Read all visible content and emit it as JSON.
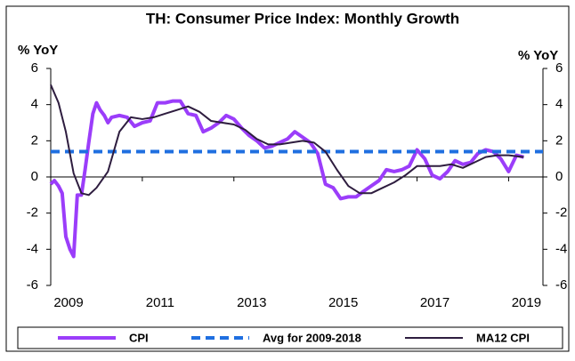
{
  "chart_data": {
    "type": "line",
    "title": "TH: Consumer Price Index: Monthly Growth",
    "ylabel": "% YoY",
    "y2label": "% YoY",
    "xlim": [
      2009,
      2019.75
    ],
    "xticks": [
      2009,
      2011,
      2013,
      2015,
      2017,
      2019
    ],
    "ylim": [
      -6,
      6
    ],
    "yticks": [
      -6,
      -4,
      -2,
      0,
      2,
      4,
      6
    ],
    "y2lim": [
      -6,
      6
    ],
    "y2ticks": [
      -6,
      -4,
      -2,
      0,
      2,
      4,
      6
    ],
    "grid": false,
    "series": [
      {
        "name": "CPI",
        "color": "#9b3dfa",
        "width": 4,
        "dash": false,
        "x": [
          2009.0,
          2009.08,
          2009.17,
          2009.25,
          2009.33,
          2009.42,
          2009.5,
          2009.58,
          2009.67,
          2009.75,
          2009.83,
          2009.92,
          2010.0,
          2010.08,
          2010.17,
          2010.25,
          2010.33,
          2010.5,
          2010.67,
          2010.83,
          2011.0,
          2011.17,
          2011.33,
          2011.5,
          2011.67,
          2011.83,
          2012.0,
          2012.17,
          2012.33,
          2012.5,
          2012.67,
          2012.83,
          2013.0,
          2013.17,
          2013.33,
          2013.5,
          2013.67,
          2013.83,
          2014.0,
          2014.17,
          2014.33,
          2014.5,
          2014.67,
          2014.83,
          2015.0,
          2015.17,
          2015.33,
          2015.5,
          2015.67,
          2015.83,
          2016.0,
          2016.17,
          2016.33,
          2016.5,
          2016.67,
          2016.83,
          2017.0,
          2017.17,
          2017.33,
          2017.5,
          2017.67,
          2017.83,
          2018.0,
          2018.17,
          2018.33,
          2018.5,
          2018.67,
          2018.83,
          2019.0,
          2019.17,
          2019.33
        ],
        "values": [
          -0.4,
          -0.2,
          -0.5,
          -0.9,
          -3.3,
          -4.0,
          -4.4,
          -1.0,
          -1.0,
          0.4,
          1.9,
          3.5,
          4.1,
          3.7,
          3.4,
          3.0,
          3.3,
          3.4,
          3.3,
          2.8,
          3.0,
          3.1,
          4.1,
          4.1,
          4.2,
          4.2,
          3.5,
          3.4,
          2.5,
          2.7,
          3.0,
          3.4,
          3.2,
          2.7,
          2.3,
          2.0,
          1.6,
          1.7,
          1.9,
          2.1,
          2.5,
          2.2,
          1.9,
          1.3,
          -0.4,
          -0.6,
          -1.2,
          -1.1,
          -1.1,
          -0.8,
          -0.5,
          -0.2,
          0.4,
          0.3,
          0.4,
          0.6,
          1.5,
          1.0,
          0.1,
          -0.1,
          0.3,
          0.9,
          0.7,
          0.8,
          1.3,
          1.5,
          1.4,
          1.0,
          0.3,
          1.2,
          1.1
        ]
      },
      {
        "name": "Avg for 2009-2018",
        "color": "#1f6fe0",
        "width": 4,
        "dash": true,
        "x": [
          2009,
          2019.75
        ],
        "values": [
          1.4,
          1.4
        ]
      },
      {
        "name": "MA12 CPI",
        "color": "#2e1d3f",
        "width": 2,
        "dash": false,
        "x": [
          2009.0,
          2009.17,
          2009.33,
          2009.5,
          2009.67,
          2009.83,
          2010.0,
          2010.25,
          2010.5,
          2010.75,
          2011.0,
          2011.25,
          2011.5,
          2011.75,
          2012.0,
          2012.25,
          2012.5,
          2012.75,
          2013.0,
          2013.25,
          2013.5,
          2013.75,
          2014.0,
          2014.25,
          2014.5,
          2014.75,
          2015.0,
          2015.25,
          2015.5,
          2015.75,
          2016.0,
          2016.25,
          2016.5,
          2016.75,
          2017.0,
          2017.25,
          2017.5,
          2017.75,
          2018.0,
          2018.25,
          2018.5,
          2018.75,
          2019.0,
          2019.33
        ],
        "values": [
          5.1,
          4.1,
          2.5,
          0.2,
          -0.9,
          -1.0,
          -0.6,
          0.3,
          2.5,
          3.3,
          3.2,
          3.3,
          3.5,
          3.7,
          3.9,
          3.6,
          3.1,
          3.0,
          2.9,
          2.6,
          2.1,
          1.8,
          1.8,
          1.9,
          2.0,
          1.9,
          1.4,
          0.4,
          -0.5,
          -0.9,
          -0.9,
          -0.6,
          -0.3,
          0.1,
          0.6,
          0.6,
          0.6,
          0.7,
          0.5,
          0.8,
          1.1,
          1.2,
          1.2,
          1.1
        ]
      }
    ]
  }
}
